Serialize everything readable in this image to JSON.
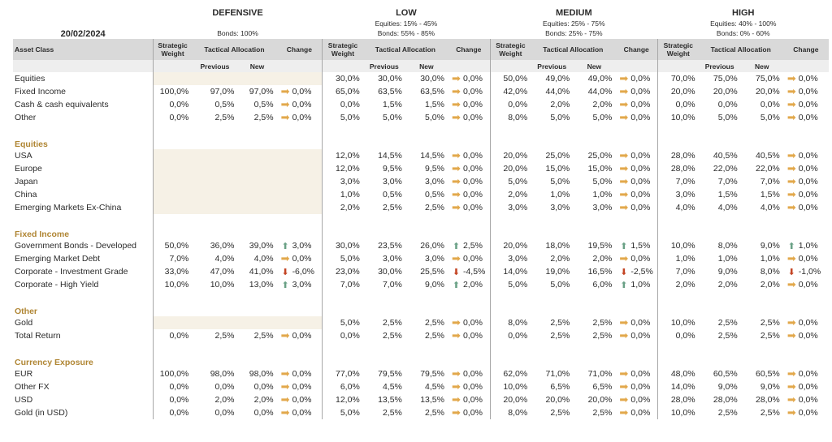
{
  "date": "20/02/2024",
  "profiles": [
    {
      "name": "DEFENSIVE",
      "line1": "",
      "line2": "Bonds: 100%"
    },
    {
      "name": "LOW",
      "line1": "Equities: 15% - 45%",
      "line2": "Bonds: 55% - 85%"
    },
    {
      "name": "MEDIUM",
      "line1": "Equities: 25% - 75%",
      "line2": "Bonds: 25% - 75%"
    },
    {
      "name": "HIGH",
      "line1": "Equities: 40% - 100%",
      "line2": "Bonds: 0% - 60%"
    }
  ],
  "headers": {
    "asset_class": "Asset Class",
    "strategic_weight_1": "Strategic",
    "strategic_weight_2": "Weight",
    "tactical_allocation": "Tactical Allocation",
    "change": "Change",
    "previous": "Previous",
    "new": "New"
  },
  "icons": {
    "flat": "arrow-right-icon",
    "up": "arrow-up-icon",
    "down": "arrow-down-icon"
  },
  "colors": {
    "flat": "#e2a84b",
    "up": "#6aa186",
    "down": "#c44525",
    "section": "#b08634",
    "header_bg": "#d9d9d9"
  },
  "sections": [
    {
      "title": "",
      "rows": [
        {
          "label": "Equities",
          "cells": [
            {
              "sw": "",
              "prev": "",
              "new": "",
              "chg": "",
              "dir": ""
            },
            {
              "sw": "30,0%",
              "prev": "30,0%",
              "new": "30,0%",
              "chg": "0,0%",
              "dir": "flat"
            },
            {
              "sw": "50,0%",
              "prev": "49,0%",
              "new": "49,0%",
              "chg": "0,0%",
              "dir": "flat"
            },
            {
              "sw": "70,0%",
              "prev": "75,0%",
              "new": "75,0%",
              "chg": "0,0%",
              "dir": "flat"
            }
          ]
        },
        {
          "label": "Fixed Income",
          "cells": [
            {
              "sw": "100,0%",
              "prev": "97,0%",
              "new": "97,0%",
              "chg": "0,0%",
              "dir": "flat"
            },
            {
              "sw": "65,0%",
              "prev": "63,5%",
              "new": "63,5%",
              "chg": "0,0%",
              "dir": "flat"
            },
            {
              "sw": "42,0%",
              "prev": "44,0%",
              "new": "44,0%",
              "chg": "0,0%",
              "dir": "flat"
            },
            {
              "sw": "20,0%",
              "prev": "20,0%",
              "new": "20,0%",
              "chg": "0,0%",
              "dir": "flat"
            }
          ]
        },
        {
          "label": "Cash & cash equivalents",
          "cells": [
            {
              "sw": "0,0%",
              "prev": "0,5%",
              "new": "0,5%",
              "chg": "0,0%",
              "dir": "flat"
            },
            {
              "sw": "0,0%",
              "prev": "1,5%",
              "new": "1,5%",
              "chg": "0,0%",
              "dir": "flat"
            },
            {
              "sw": "0,0%",
              "prev": "2,0%",
              "new": "2,0%",
              "chg": "0,0%",
              "dir": "flat"
            },
            {
              "sw": "0,0%",
              "prev": "0,0%",
              "new": "0,0%",
              "chg": "0,0%",
              "dir": "flat"
            }
          ]
        },
        {
          "label": "Other",
          "cells": [
            {
              "sw": "0,0%",
              "prev": "2,5%",
              "new": "2,5%",
              "chg": "0,0%",
              "dir": "flat"
            },
            {
              "sw": "5,0%",
              "prev": "5,0%",
              "new": "5,0%",
              "chg": "0,0%",
              "dir": "flat"
            },
            {
              "sw": "8,0%",
              "prev": "5,0%",
              "new": "5,0%",
              "chg": "0,0%",
              "dir": "flat"
            },
            {
              "sw": "10,0%",
              "prev": "5,0%",
              "new": "5,0%",
              "chg": "0,0%",
              "dir": "flat"
            }
          ]
        }
      ]
    },
    {
      "title": "Equities",
      "rows": [
        {
          "label": "USA",
          "cells": [
            {
              "sw": "",
              "prev": "",
              "new": "",
              "chg": "",
              "dir": ""
            },
            {
              "sw": "12,0%",
              "prev": "14,5%",
              "new": "14,5%",
              "chg": "0,0%",
              "dir": "flat"
            },
            {
              "sw": "20,0%",
              "prev": "25,0%",
              "new": "25,0%",
              "chg": "0,0%",
              "dir": "flat"
            },
            {
              "sw": "28,0%",
              "prev": "40,5%",
              "new": "40,5%",
              "chg": "0,0%",
              "dir": "flat"
            }
          ]
        },
        {
          "label": "Europe",
          "cells": [
            {
              "sw": "",
              "prev": "",
              "new": "",
              "chg": "",
              "dir": ""
            },
            {
              "sw": "12,0%",
              "prev": "9,5%",
              "new": "9,5%",
              "chg": "0,0%",
              "dir": "flat"
            },
            {
              "sw": "20,0%",
              "prev": "15,0%",
              "new": "15,0%",
              "chg": "0,0%",
              "dir": "flat"
            },
            {
              "sw": "28,0%",
              "prev": "22,0%",
              "new": "22,0%",
              "chg": "0,0%",
              "dir": "flat"
            }
          ]
        },
        {
          "label": "Japan",
          "cells": [
            {
              "sw": "",
              "prev": "",
              "new": "",
              "chg": "",
              "dir": ""
            },
            {
              "sw": "3,0%",
              "prev": "3,0%",
              "new": "3,0%",
              "chg": "0,0%",
              "dir": "flat"
            },
            {
              "sw": "5,0%",
              "prev": "5,0%",
              "new": "5,0%",
              "chg": "0,0%",
              "dir": "flat"
            },
            {
              "sw": "7,0%",
              "prev": "7,0%",
              "new": "7,0%",
              "chg": "0,0%",
              "dir": "flat"
            }
          ]
        },
        {
          "label": "China",
          "cells": [
            {
              "sw": "",
              "prev": "",
              "new": "",
              "chg": "",
              "dir": ""
            },
            {
              "sw": "1,0%",
              "prev": "0,5%",
              "new": "0,5%",
              "chg": "0,0%",
              "dir": "flat"
            },
            {
              "sw": "2,0%",
              "prev": "1,0%",
              "new": "1,0%",
              "chg": "0,0%",
              "dir": "flat"
            },
            {
              "sw": "3,0%",
              "prev": "1,5%",
              "new": "1,5%",
              "chg": "0,0%",
              "dir": "flat"
            }
          ]
        },
        {
          "label": "Emerging Markets Ex-China",
          "cells": [
            {
              "sw": "",
              "prev": "",
              "new": "",
              "chg": "",
              "dir": ""
            },
            {
              "sw": "2,0%",
              "prev": "2,5%",
              "new": "2,5%",
              "chg": "0,0%",
              "dir": "flat"
            },
            {
              "sw": "3,0%",
              "prev": "3,0%",
              "new": "3,0%",
              "chg": "0,0%",
              "dir": "flat"
            },
            {
              "sw": "4,0%",
              "prev": "4,0%",
              "new": "4,0%",
              "chg": "0,0%",
              "dir": "flat"
            }
          ]
        }
      ]
    },
    {
      "title": "Fixed Income",
      "rows": [
        {
          "label": "Government Bonds - Developed",
          "cells": [
            {
              "sw": "50,0%",
              "prev": "36,0%",
              "new": "39,0%",
              "chg": "3,0%",
              "dir": "up"
            },
            {
              "sw": "30,0%",
              "prev": "23,5%",
              "new": "26,0%",
              "chg": "2,5%",
              "dir": "up"
            },
            {
              "sw": "20,0%",
              "prev": "18,0%",
              "new": "19,5%",
              "chg": "1,5%",
              "dir": "up"
            },
            {
              "sw": "10,0%",
              "prev": "8,0%",
              "new": "9,0%",
              "chg": "1,0%",
              "dir": "up"
            }
          ]
        },
        {
          "label": "Emerging Market Debt",
          "cells": [
            {
              "sw": "7,0%",
              "prev": "4,0%",
              "new": "4,0%",
              "chg": "0,0%",
              "dir": "flat"
            },
            {
              "sw": "5,0%",
              "prev": "3,0%",
              "new": "3,0%",
              "chg": "0,0%",
              "dir": "flat"
            },
            {
              "sw": "3,0%",
              "prev": "2,0%",
              "new": "2,0%",
              "chg": "0,0%",
              "dir": "flat"
            },
            {
              "sw": "1,0%",
              "prev": "1,0%",
              "new": "1,0%",
              "chg": "0,0%",
              "dir": "flat"
            }
          ]
        },
        {
          "label": "Corporate - Investment Grade",
          "cells": [
            {
              "sw": "33,0%",
              "prev": "47,0%",
              "new": "41,0%",
              "chg": "-6,0%",
              "dir": "down"
            },
            {
              "sw": "23,0%",
              "prev": "30,0%",
              "new": "25,5%",
              "chg": "-4,5%",
              "dir": "down"
            },
            {
              "sw": "14,0%",
              "prev": "19,0%",
              "new": "16,5%",
              "chg": "-2,5%",
              "dir": "down"
            },
            {
              "sw": "7,0%",
              "prev": "9,0%",
              "new": "8,0%",
              "chg": "-1,0%",
              "dir": "down"
            }
          ]
        },
        {
          "label": "Corporate - High Yield",
          "cells": [
            {
              "sw": "10,0%",
              "prev": "10,0%",
              "new": "13,0%",
              "chg": "3,0%",
              "dir": "up"
            },
            {
              "sw": "7,0%",
              "prev": "7,0%",
              "new": "9,0%",
              "chg": "2,0%",
              "dir": "up"
            },
            {
              "sw": "5,0%",
              "prev": "5,0%",
              "new": "6,0%",
              "chg": "1,0%",
              "dir": "up"
            },
            {
              "sw": "2,0%",
              "prev": "2,0%",
              "new": "2,0%",
              "chg": "0,0%",
              "dir": "flat"
            }
          ]
        }
      ]
    },
    {
      "title": "Other",
      "rows": [
        {
          "label": "Gold",
          "cells": [
            {
              "sw": "",
              "prev": "",
              "new": "",
              "chg": "",
              "dir": ""
            },
            {
              "sw": "5,0%",
              "prev": "2,5%",
              "new": "2,5%",
              "chg": "0,0%",
              "dir": "flat"
            },
            {
              "sw": "8,0%",
              "prev": "2,5%",
              "new": "2,5%",
              "chg": "0,0%",
              "dir": "flat"
            },
            {
              "sw": "10,0%",
              "prev": "2,5%",
              "new": "2,5%",
              "chg": "0,0%",
              "dir": "flat"
            }
          ]
        },
        {
          "label": "Total Return",
          "cells": [
            {
              "sw": "0,0%",
              "prev": "2,5%",
              "new": "2,5%",
              "chg": "0,0%",
              "dir": "flat"
            },
            {
              "sw": "0,0%",
              "prev": "2,5%",
              "new": "2,5%",
              "chg": "0,0%",
              "dir": "flat"
            },
            {
              "sw": "0,0%",
              "prev": "2,5%",
              "new": "2,5%",
              "chg": "0,0%",
              "dir": "flat"
            },
            {
              "sw": "0,0%",
              "prev": "2,5%",
              "new": "2,5%",
              "chg": "0,0%",
              "dir": "flat"
            }
          ]
        }
      ]
    },
    {
      "title": "Currency Exposure",
      "rows": [
        {
          "label": "EUR",
          "cells": [
            {
              "sw": "100,0%",
              "prev": "98,0%",
              "new": "98,0%",
              "chg": "0,0%",
              "dir": "flat"
            },
            {
              "sw": "77,0%",
              "prev": "79,5%",
              "new": "79,5%",
              "chg": "0,0%",
              "dir": "flat"
            },
            {
              "sw": "62,0%",
              "prev": "71,0%",
              "new": "71,0%",
              "chg": "0,0%",
              "dir": "flat"
            },
            {
              "sw": "48,0%",
              "prev": "60,5%",
              "new": "60,5%",
              "chg": "0,0%",
              "dir": "flat"
            }
          ]
        },
        {
          "label": "Other FX",
          "cells": [
            {
              "sw": "0,0%",
              "prev": "0,0%",
              "new": "0,0%",
              "chg": "0,0%",
              "dir": "flat"
            },
            {
              "sw": "6,0%",
              "prev": "4,5%",
              "new": "4,5%",
              "chg": "0,0%",
              "dir": "flat"
            },
            {
              "sw": "10,0%",
              "prev": "6,5%",
              "new": "6,5%",
              "chg": "0,0%",
              "dir": "flat"
            },
            {
              "sw": "14,0%",
              "prev": "9,0%",
              "new": "9,0%",
              "chg": "0,0%",
              "dir": "flat"
            }
          ]
        },
        {
          "label": "USD",
          "cells": [
            {
              "sw": "0,0%",
              "prev": "2,0%",
              "new": "2,0%",
              "chg": "0,0%",
              "dir": "flat"
            },
            {
              "sw": "12,0%",
              "prev": "13,5%",
              "new": "13,5%",
              "chg": "0,0%",
              "dir": "flat"
            },
            {
              "sw": "20,0%",
              "prev": "20,0%",
              "new": "20,0%",
              "chg": "0,0%",
              "dir": "flat"
            },
            {
              "sw": "28,0%",
              "prev": "28,0%",
              "new": "28,0%",
              "chg": "0,0%",
              "dir": "flat"
            }
          ]
        },
        {
          "label": "Gold (in USD)",
          "cells": [
            {
              "sw": "0,0%",
              "prev": "0,0%",
              "new": "0,0%",
              "chg": "0,0%",
              "dir": "flat"
            },
            {
              "sw": "5,0%",
              "prev": "2,5%",
              "new": "2,5%",
              "chg": "0,0%",
              "dir": "flat"
            },
            {
              "sw": "8,0%",
              "prev": "2,5%",
              "new": "2,5%",
              "chg": "0,0%",
              "dir": "flat"
            },
            {
              "sw": "10,0%",
              "prev": "2,5%",
              "new": "2,5%",
              "chg": "0,0%",
              "dir": "flat"
            }
          ]
        }
      ]
    }
  ]
}
